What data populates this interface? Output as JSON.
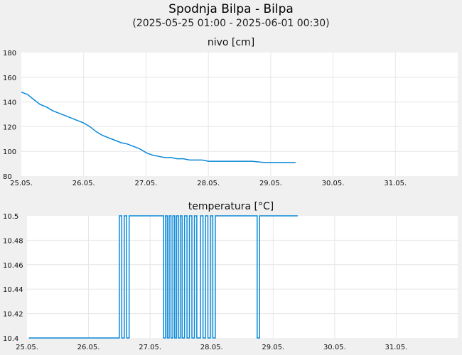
{
  "header": {
    "title": "Spodnja Bilpa - Bilpa",
    "subtitle": "(2025-05-25 01:00 - 2025-06-01 00:30)"
  },
  "colors": {
    "line": "#0a88d8",
    "plot_bg": "#ffffff",
    "page_bg": "#f0f0f0",
    "grid": "#e6e6e6"
  },
  "chart_data": [
    {
      "type": "line",
      "title": "nivo [cm]",
      "x_tick_labels": [
        "25.05.",
        "26.05.",
        "27.05.",
        "28.05.",
        "29.05.",
        "30.05.",
        "31.05."
      ],
      "xlim": [
        0,
        7
      ],
      "ylim": [
        80,
        180
      ],
      "y_ticks": [
        80,
        100,
        120,
        140,
        160,
        180
      ],
      "y_tick_labels": [
        "80",
        "100",
        "120",
        "140",
        "160",
        "180"
      ],
      "grid": true,
      "series": [
        {
          "x": [
            0.0,
            0.1,
            0.2,
            0.3,
            0.4,
            0.5,
            0.6,
            0.7,
            0.8,
            0.9,
            1.0,
            1.1,
            1.2,
            1.3,
            1.4,
            1.5,
            1.6,
            1.7,
            1.8,
            1.9,
            2.0,
            2.1,
            2.2,
            2.3,
            2.4,
            2.5,
            2.6,
            2.7,
            2.8,
            2.9,
            3.0,
            3.1,
            3.3,
            3.5,
            3.7,
            3.9,
            4.1,
            4.3,
            4.4
          ],
          "y": [
            148,
            146,
            142,
            138,
            136,
            133,
            131,
            129,
            127,
            125,
            123,
            120,
            116,
            113,
            111,
            109,
            107,
            106,
            104,
            102,
            99,
            97,
            96,
            95,
            95,
            94,
            94,
            93,
            93,
            93,
            92,
            92,
            92,
            92,
            92,
            91,
            91,
            91,
            91
          ]
        }
      ]
    },
    {
      "type": "line",
      "title": "temperatura [°C]",
      "x_tick_labels": [
        "25.05.",
        "26.05.",
        "27.05.",
        "28.05.",
        "29.05.",
        "30.05.",
        "31.05."
      ],
      "xlim": [
        0,
        7
      ],
      "ylim": [
        10.4,
        10.5
      ],
      "y_ticks": [
        10.4,
        10.42,
        10.44,
        10.46,
        10.48,
        10.5
      ],
      "y_tick_labels": [
        "10.4",
        "10.42",
        "10.44",
        "10.46",
        "10.48",
        "10.5"
      ],
      "grid": true,
      "series": [
        {
          "x": [
            0.03,
            1.5,
            1.5,
            1.54,
            1.54,
            1.58,
            1.58,
            1.62,
            1.62,
            1.66,
            1.66,
            1.7,
            1.7,
            1.74,
            1.74,
            2.22,
            2.22,
            2.25,
            2.25,
            2.28,
            2.28,
            2.31,
            2.31,
            2.34,
            2.34,
            2.37,
            2.37,
            2.4,
            2.4,
            2.43,
            2.43,
            2.46,
            2.46,
            2.49,
            2.49,
            2.52,
            2.52,
            2.56,
            2.56,
            2.6,
            2.6,
            2.64,
            2.64,
            2.68,
            2.68,
            2.72,
            2.72,
            2.76,
            2.76,
            2.82,
            2.82,
            2.86,
            2.86,
            2.9,
            2.9,
            2.94,
            2.94,
            2.98,
            2.98,
            3.02,
            3.02,
            3.06,
            3.06,
            3.1,
            3.1,
            3.74,
            3.74,
            3.78,
            3.78,
            4.4
          ],
          "y": [
            10.4,
            10.4,
            10.5,
            10.5,
            10.4,
            10.4,
            10.5,
            10.5,
            10.4,
            10.4,
            10.5,
            10.5,
            10.5,
            10.5,
            10.5,
            10.5,
            10.4,
            10.4,
            10.5,
            10.5,
            10.4,
            10.4,
            10.5,
            10.5,
            10.4,
            10.4,
            10.5,
            10.5,
            10.4,
            10.4,
            10.5,
            10.5,
            10.4,
            10.4,
            10.5,
            10.5,
            10.4,
            10.4,
            10.5,
            10.5,
            10.4,
            10.4,
            10.5,
            10.5,
            10.4,
            10.4,
            10.5,
            10.5,
            10.4,
            10.4,
            10.5,
            10.5,
            10.4,
            10.4,
            10.5,
            10.5,
            10.4,
            10.4,
            10.5,
            10.5,
            10.4,
            10.4,
            10.5,
            10.5,
            10.5,
            10.5,
            10.4,
            10.4,
            10.5,
            10.5
          ]
        }
      ]
    }
  ]
}
